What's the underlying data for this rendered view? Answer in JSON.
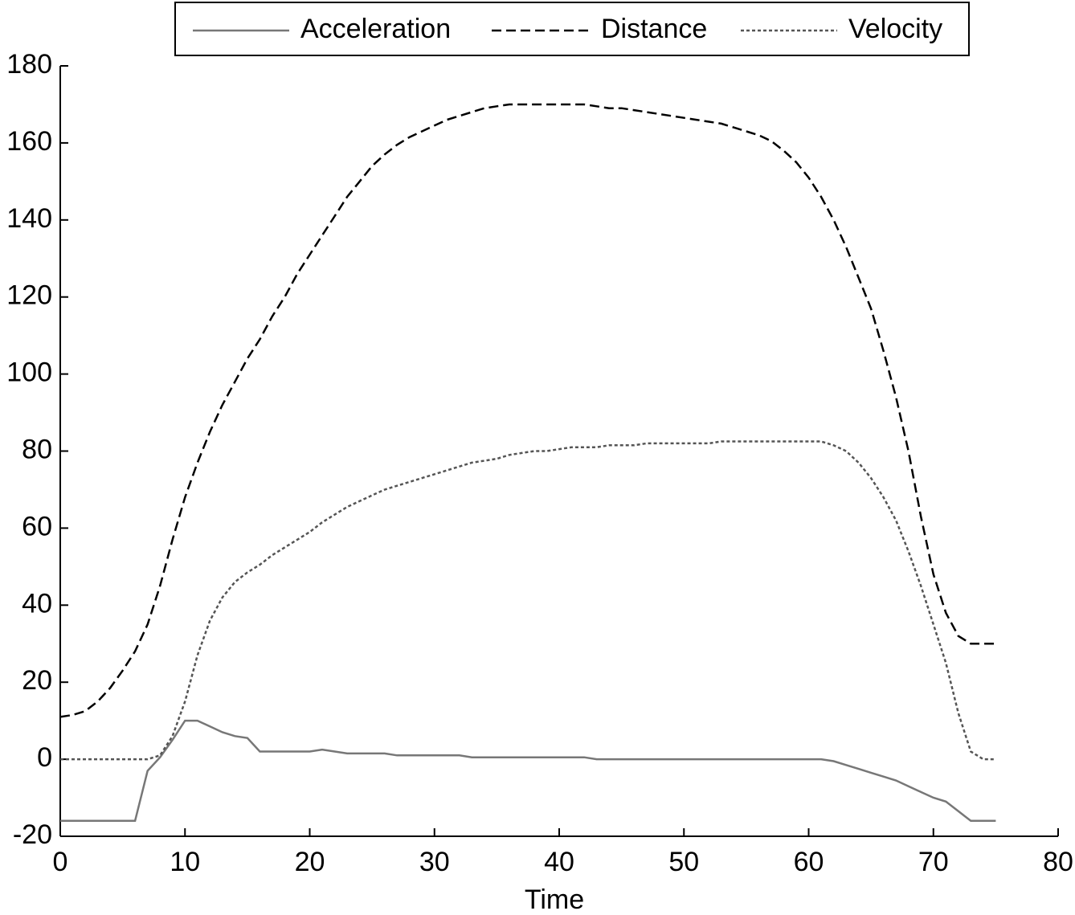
{
  "chart_data": {
    "type": "line",
    "xlabel": "Time",
    "x": [
      0,
      1,
      2,
      3,
      4,
      5,
      6,
      7,
      8,
      9,
      10,
      11,
      12,
      13,
      14,
      15,
      16,
      17,
      18,
      19,
      20,
      21,
      22,
      23,
      24,
      25,
      26,
      27,
      28,
      29,
      30,
      31,
      32,
      33,
      34,
      35,
      36,
      37,
      38,
      39,
      40,
      41,
      42,
      43,
      44,
      45,
      46,
      47,
      48,
      49,
      50,
      51,
      52,
      53,
      54,
      55,
      56,
      57,
      58,
      59,
      60,
      61,
      62,
      63,
      64,
      65,
      66,
      67,
      68,
      69,
      70,
      71,
      72,
      73,
      74,
      75
    ],
    "series": [
      {
        "name": "Acceleration",
        "color": "#777777",
        "dash": "solid",
        "values": [
          -16,
          -16,
          -16,
          -16,
          -16,
          -16,
          -16,
          -3,
          0.5,
          5,
          10,
          10,
          8.5,
          7,
          6,
          5.5,
          2,
          2,
          2,
          2,
          2,
          2.5,
          2,
          1.5,
          1.5,
          1.5,
          1.5,
          1,
          1,
          1,
          1,
          1,
          1,
          0.5,
          0.5,
          0.5,
          0.5,
          0.5,
          0.5,
          0.5,
          0.5,
          0.5,
          0.5,
          0,
          0,
          0,
          0,
          0,
          0,
          0,
          0,
          0,
          0,
          0,
          0,
          0,
          0,
          0,
          0,
          0,
          0,
          0,
          -0.5,
          -1.5,
          -2.5,
          -3.5,
          -4.5,
          -5.5,
          -7,
          -8.5,
          -10,
          -11,
          -13.5,
          -16,
          -16,
          -16
        ]
      },
      {
        "name": "Distance",
        "color": "#000000",
        "dash": "dashed",
        "values": [
          11,
          11.5,
          12.5,
          15,
          18.5,
          23,
          28,
          35,
          45,
          57,
          68,
          77,
          85,
          92,
          98,
          104,
          109,
          115,
          120,
          126,
          131,
          136,
          141,
          146,
          150,
          154,
          157,
          159.5,
          161.5,
          163,
          164.5,
          166,
          167,
          168,
          169,
          169.5,
          170,
          170,
          170,
          170,
          170,
          170,
          170,
          169.5,
          169,
          169,
          168.5,
          168,
          167.5,
          167,
          166.5,
          166,
          165.5,
          165,
          164,
          163,
          162,
          160.5,
          158,
          155,
          151,
          146,
          140,
          133,
          125,
          117,
          106,
          94,
          80,
          63,
          48,
          38,
          32,
          30,
          30,
          30
        ]
      },
      {
        "name": "Velocity",
        "color": "#555555",
        "dash": "dotted",
        "values": [
          0,
          0,
          0,
          0,
          0,
          0,
          0,
          0,
          1,
          6,
          15,
          27,
          36,
          42,
          46,
          48.5,
          50.5,
          53,
          55,
          57,
          59,
          61.5,
          63.5,
          65.5,
          67,
          68.5,
          70,
          71,
          72,
          73,
          74,
          75,
          76,
          77,
          77.5,
          78,
          79,
          79.5,
          80,
          80,
          80.5,
          81,
          81,
          81,
          81.5,
          81.5,
          81.5,
          82,
          82,
          82,
          82,
          82,
          82,
          82.5,
          82.5,
          82.5,
          82.5,
          82.5,
          82.5,
          82.5,
          82.5,
          82.5,
          81.5,
          80,
          77,
          73,
          68,
          62,
          54,
          45,
          35,
          25,
          12,
          2,
          0,
          0
        ]
      }
    ],
    "xlim": [
      0,
      80
    ],
    "xticks": [
      0,
      10,
      20,
      30,
      40,
      50,
      60,
      70,
      80
    ],
    "ylim": [
      -20,
      180
    ],
    "yticks": [
      -20,
      0,
      20,
      40,
      60,
      80,
      100,
      120,
      140,
      160,
      180
    ],
    "legend": "top"
  }
}
